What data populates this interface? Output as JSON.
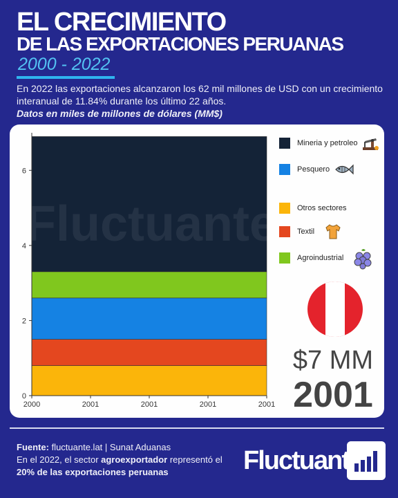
{
  "header": {
    "title_line1": "EL CRECIMIENTO",
    "title_line2": "DE LAS EXPORTACIONES PERUANAS",
    "years": "2000 - 2022",
    "description": "En 2022 las exportaciones alcanzaron los 62 mil millones de USD con un crecimiento interanual de 11.84% durante los último 22 años.",
    "units_note": "Datos en miles de millones de dólares (MM$)"
  },
  "chart_data": {
    "type": "area",
    "stacked": true,
    "x": [
      "2000",
      "2001",
      "2001",
      "2001",
      "2001"
    ],
    "ylim": [
      0,
      7
    ],
    "yticks": [
      "0",
      "2",
      "4",
      "6"
    ],
    "grid": false,
    "legend_position": "right",
    "watermark": "Fluctuante",
    "series": [
      {
        "name": "Otros sectores",
        "color": "#fbb50a",
        "values": [
          0.8,
          0.8,
          0.8,
          0.8,
          0.8
        ]
      },
      {
        "name": "Textil",
        "color": "#e4471f",
        "values": [
          0.7,
          0.7,
          0.7,
          0.7,
          0.7
        ]
      },
      {
        "name": "Pesquero",
        "color": "#1582e3",
        "values": [
          1.1,
          1.1,
          1.1,
          1.1,
          1.1
        ]
      },
      {
        "name": "Agroindustrial",
        "color": "#80c71e",
        "values": [
          0.7,
          0.7,
          0.7,
          0.7,
          0.7
        ]
      },
      {
        "name": "Mineria y petroleo",
        "color": "#142337",
        "values": [
          3.6,
          3.6,
          3.6,
          3.6,
          3.6
        ]
      }
    ]
  },
  "legend": [
    {
      "label": "Mineria y petroleo",
      "color": "#142337",
      "icon": "oil-pump-icon"
    },
    {
      "label": "Pesquero",
      "color": "#1582e3",
      "icon": "fish-icon"
    },
    {
      "label": "Otros sectores",
      "color": "#fbb50a",
      "icon": ""
    },
    {
      "label": "Textil",
      "color": "#e4471f",
      "icon": "shirt-icon"
    },
    {
      "label": "Agroindustrial",
      "color": "#80c71e",
      "icon": "grapes-icon"
    }
  ],
  "highlight": {
    "value": "$7 MM",
    "year": "2001",
    "flag": "peru-flag-icon"
  },
  "footer": {
    "source_label": "Fuente:",
    "source_text": " fluctuante.lat | Sunat Aduanas",
    "line2_pre": "En el 2022, el sector ",
    "line2_bold": "agroexportador",
    "line2_post": " representó el",
    "line3_bold": "20% de las exportaciones peruanas",
    "brand": "Fluctuante",
    "brand_icon": "bar-chart-logo-icon"
  },
  "colors": {
    "background": "#24288e",
    "accent": "#2fb4ef"
  }
}
